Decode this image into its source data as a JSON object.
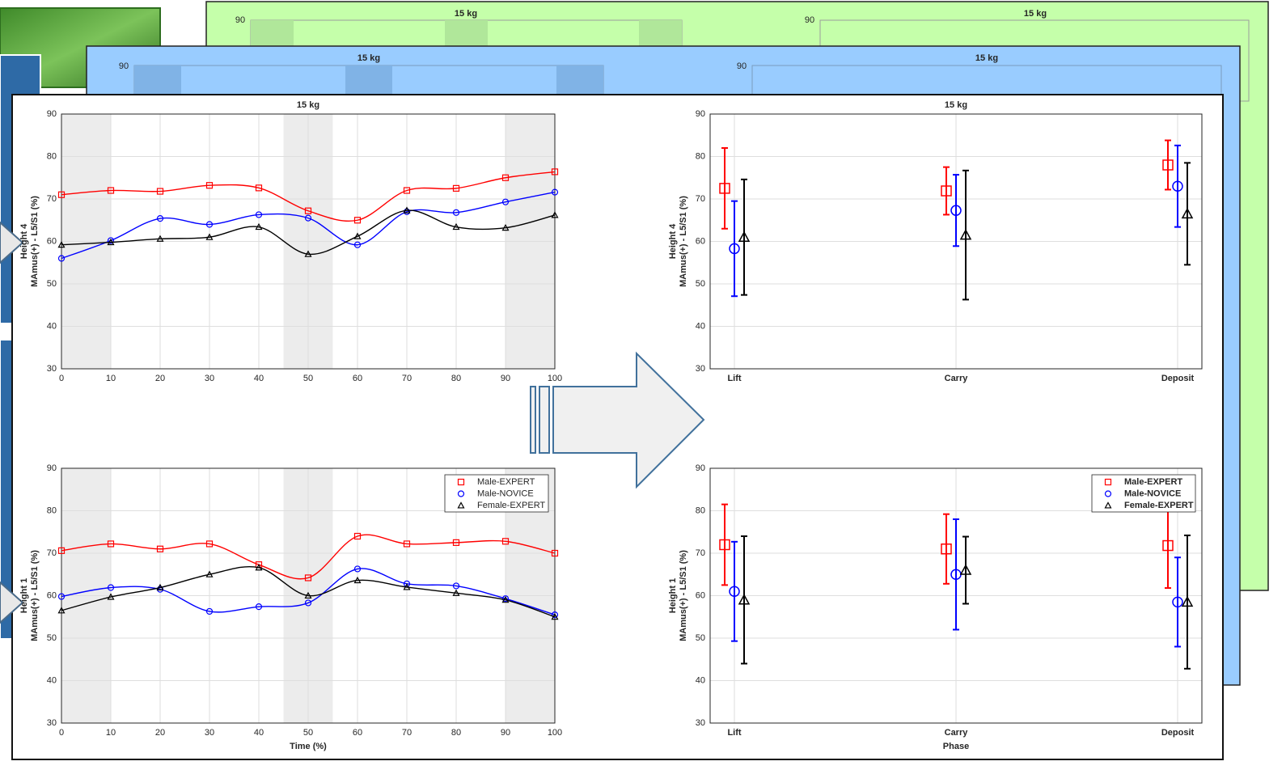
{
  "background_panels": [
    {
      "titles": [
        "15 kg",
        "15 kg"
      ],
      "ytick": 90
    },
    {
      "titles": [
        "15 kg",
        "15 kg"
      ],
      "ytick": 90
    }
  ],
  "chart_data": [
    {
      "type": "line",
      "title": "15 kg",
      "ylabel_group": "Height 4",
      "ylabel": "MAmus(+) - L5/S1 (%)",
      "x": [
        0,
        10,
        20,
        30,
        40,
        50,
        60,
        70,
        80,
        90,
        100
      ],
      "xlim": [
        0,
        100
      ],
      "xticks": [
        0,
        10,
        20,
        30,
        40,
        50,
        60,
        70,
        80,
        90,
        100
      ],
      "ylim": [
        30,
        90
      ],
      "yticks": [
        30,
        40,
        50,
        60,
        70,
        80,
        90
      ],
      "grid": true,
      "shaded_regions": [
        [
          0,
          10
        ],
        [
          45,
          55
        ],
        [
          90,
          100
        ]
      ],
      "series": [
        {
          "name": "Male-EXPERT",
          "color": "#ff0000",
          "marker": "s",
          "values": [
            71,
            72,
            71.8,
            73.2,
            72.6,
            67.2,
            65,
            72,
            72.5,
            75,
            76.4
          ]
        },
        {
          "name": "Male-NOVICE",
          "color": "#0000ff",
          "marker": "o",
          "values": [
            56,
            60.2,
            65.4,
            64,
            66.3,
            65.5,
            59.2,
            67,
            66.8,
            69.3,
            71.6
          ]
        },
        {
          "name": "Female-EXPERT",
          "color": "#000000",
          "marker": "^",
          "values": [
            59.2,
            59.8,
            60.6,
            61,
            63.4,
            57,
            61.2,
            67.3,
            63.4,
            63.2,
            66.2
          ]
        }
      ]
    },
    {
      "type": "line",
      "ylabel_group": "Height 1",
      "ylabel": "MAmus(+) - L5/S1 (%)",
      "xlabel": "Time (%)",
      "x": [
        0,
        10,
        20,
        30,
        40,
        50,
        60,
        70,
        80,
        90,
        100
      ],
      "xlim": [
        0,
        100
      ],
      "xticks": [
        0,
        10,
        20,
        30,
        40,
        50,
        60,
        70,
        80,
        90,
        100
      ],
      "ylim": [
        30,
        90
      ],
      "yticks": [
        30,
        40,
        50,
        60,
        70,
        80,
        90
      ],
      "grid": true,
      "legend": "upper right",
      "shaded_regions": [
        [
          0,
          10
        ],
        [
          45,
          55
        ],
        [
          90,
          100
        ]
      ],
      "series": [
        {
          "name": "Male-EXPERT",
          "color": "#ff0000",
          "marker": "s",
          "values": [
            70.6,
            72.2,
            71,
            72.2,
            67.3,
            64.2,
            74,
            72.2,
            72.5,
            72.8,
            70
          ]
        },
        {
          "name": "Male-NOVICE",
          "color": "#0000ff",
          "marker": "o",
          "values": [
            59.8,
            61.9,
            61.5,
            56.3,
            57.4,
            58.3,
            66.3,
            62.8,
            62.3,
            59.3,
            55.5
          ]
        },
        {
          "name": "Female-EXPERT",
          "color": "#000000",
          "marker": "^",
          "values": [
            56.5,
            59.7,
            61.9,
            65,
            66.6,
            60,
            63.6,
            62,
            60.6,
            59,
            55
          ]
        }
      ]
    },
    {
      "type": "errorbar",
      "title": "15 kg",
      "ylabel_group": "Height 4",
      "ylabel": "MAmus(+) - L5/S1 (%)",
      "categories": [
        "Lift",
        "Carry",
        "Deposit"
      ],
      "ylim": [
        30,
        90
      ],
      "yticks": [
        30,
        40,
        50,
        60,
        70,
        80,
        90
      ],
      "grid": true,
      "series": [
        {
          "name": "Male-EXPERT",
          "color": "#ff0000",
          "marker": "s",
          "values": [
            72.5,
            71.9,
            78
          ],
          "errors": [
            9.5,
            5.6,
            5.8
          ]
        },
        {
          "name": "Male-NOVICE",
          "color": "#0000ff",
          "marker": "o",
          "values": [
            58.3,
            67.3,
            73
          ],
          "errors": [
            11.2,
            8.4,
            9.6
          ]
        },
        {
          "name": "Female-EXPERT",
          "color": "#000000",
          "marker": "^",
          "values": [
            61,
            61.5,
            66.5
          ],
          "errors": [
            13.6,
            15.2,
            12
          ]
        }
      ]
    },
    {
      "type": "errorbar",
      "ylabel_group": "Height 1",
      "ylabel": "MAmus(+) - L5/S1 (%)",
      "xlabel": "Phase",
      "categories": [
        "Lift",
        "Carry",
        "Deposit"
      ],
      "ylim": [
        30,
        90
      ],
      "yticks": [
        30,
        40,
        50,
        60,
        70,
        80,
        90
      ],
      "grid": true,
      "legend": "upper right",
      "series": [
        {
          "name": "Male-EXPERT",
          "color": "#ff0000",
          "marker": "s",
          "values": [
            72,
            71,
            71.8
          ],
          "errors": [
            9.5,
            8.2,
            10
          ]
        },
        {
          "name": "Male-NOVICE",
          "color": "#0000ff",
          "marker": "o",
          "values": [
            61,
            65,
            58.5
          ],
          "errors": [
            11.7,
            13,
            10.5
          ]
        },
        {
          "name": "Female-EXPERT",
          "color": "#000000",
          "marker": "^",
          "values": [
            59,
            66,
            58.5
          ],
          "errors": [
            15,
            7.9,
            15.7
          ]
        }
      ]
    }
  ]
}
